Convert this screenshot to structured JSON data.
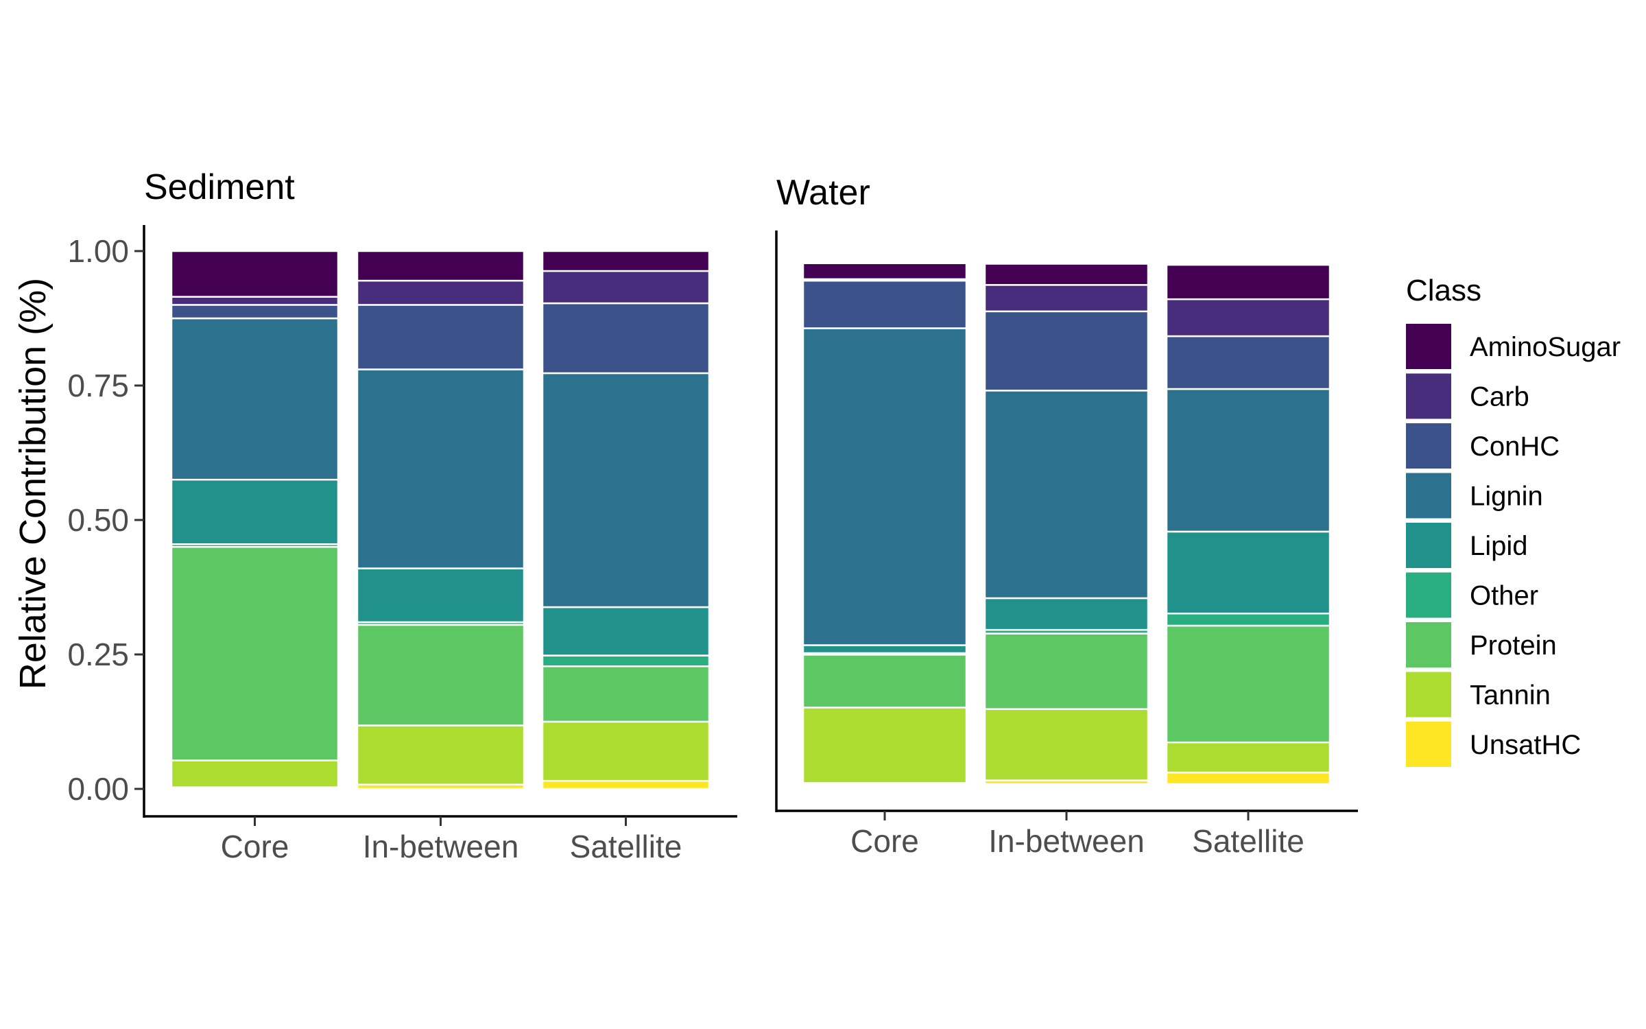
{
  "chart_data": {
    "type": "bar",
    "stacked": true,
    "ylabel": "Relative Contribution (%)",
    "ylim": [
      0,
      1
    ],
    "yticks": [
      0.0,
      0.25,
      0.5,
      0.75,
      1.0
    ],
    "ytick_labels": [
      "0.00",
      "0.25",
      "0.50",
      "0.75",
      "1.00"
    ],
    "categories": [
      "Core",
      "In-between",
      "Satellite"
    ],
    "legend": {
      "title": "Class",
      "position": "right",
      "entries": [
        "AminoSugar",
        "Carb",
        "ConHC",
        "Lignin",
        "Lipid",
        "Other",
        "Protein",
        "Tannin",
        "UnsatHC"
      ]
    },
    "colors": {
      "AminoSugar": "#440154",
      "Carb": "#472D7B",
      "ConHC": "#3B528B",
      "Lignin": "#2C728E",
      "Lipid": "#21918C",
      "Other": "#28AE80",
      "Protein": "#5DC863",
      "Tannin": "#ADDC30",
      "UnsatHC": "#FDE725"
    },
    "panels": [
      {
        "title": "Sediment",
        "series": [
          {
            "name": "UnsatHC",
            "values": [
              0.003,
              0.008,
              0.015
            ]
          },
          {
            "name": "Tannin",
            "values": [
              0.05,
              0.11,
              0.11
            ]
          },
          {
            "name": "Protein",
            "values": [
              0.397,
              0.187,
              0.103
            ]
          },
          {
            "name": "Other",
            "values": [
              0.005,
              0.005,
              0.02
            ]
          },
          {
            "name": "Lipid",
            "values": [
              0.12,
              0.1,
              0.09
            ]
          },
          {
            "name": "Lignin",
            "values": [
              0.3,
              0.37,
              0.435
            ]
          },
          {
            "name": "ConHC",
            "values": [
              0.025,
              0.12,
              0.13
            ]
          },
          {
            "name": "Carb",
            "values": [
              0.015,
              0.045,
              0.06
            ]
          },
          {
            "name": "AminoSugar",
            "values": [
              0.085,
              0.055,
              0.037
            ]
          }
        ]
      },
      {
        "title": "Water",
        "series": [
          {
            "name": "UnsatHC",
            "values": [
              0.002,
              0.007,
              0.022
            ]
          },
          {
            "name": "Tannin",
            "values": [
              0.143,
              0.135,
              0.057
            ]
          },
          {
            "name": "Protein",
            "values": [
              0.1,
              0.143,
              0.221
            ]
          },
          {
            "name": "Other",
            "values": [
              0.003,
              0.007,
              0.023
            ]
          },
          {
            "name": "Lipid",
            "values": [
              0.015,
              0.06,
              0.155
            ]
          },
          {
            "name": "Lignin",
            "values": [
              0.6,
              0.393,
              0.27
            ]
          },
          {
            "name": "ConHC",
            "values": [
              0.09,
              0.15,
              0.1
            ]
          },
          {
            "name": "Carb",
            "values": [
              0.003,
              0.05,
              0.07
            ]
          },
          {
            "name": "AminoSugar",
            "values": [
              0.03,
              0.04,
              0.065
            ]
          }
        ]
      }
    ]
  }
}
